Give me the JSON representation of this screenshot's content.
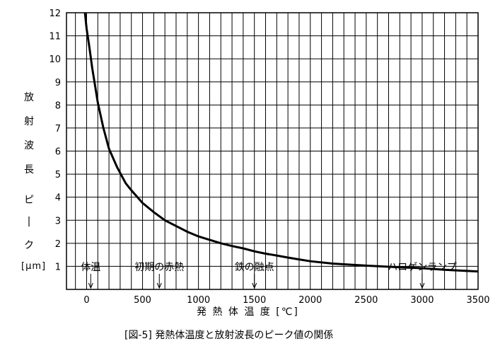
{
  "chart_data": {
    "type": "line",
    "y_label_chars": [
      "放",
      "射",
      "波",
      "長",
      "ピ",
      "|",
      "ク"
    ],
    "y_unit": "[μm]",
    "x_title": "発 熱 体 温 度 [℃]",
    "caption": "[図-5] 発熱体温度と放射波長のピーク値の関係",
    "xlim": [
      -180,
      3500
    ],
    "ylim": [
      0,
      12
    ],
    "x_ticks": [
      0,
      500,
      1000,
      1500,
      2000,
      2500,
      3000,
      3500
    ],
    "y_ticks": [
      1,
      2,
      3,
      4,
      5,
      6,
      7,
      8,
      9,
      10,
      11,
      12
    ],
    "grid": true,
    "series": [
      {
        "x": [
          -15,
          0,
          25,
          50,
          100,
          150,
          200,
          273,
          350,
          400,
          500,
          600,
          700,
          800,
          900,
          1000,
          1100,
          1200,
          1300,
          1400,
          1500,
          1600,
          1700,
          1800,
          1900,
          2000,
          2200,
          2500,
          2800,
          3000,
          3200,
          3500
        ],
        "y": [
          12.0,
          11.3,
          10.5,
          9.6,
          8.1,
          7.0,
          6.1,
          5.3,
          4.6,
          4.3,
          3.75,
          3.35,
          3.0,
          2.75,
          2.5,
          2.3,
          2.15,
          2.0,
          1.88,
          1.78,
          1.65,
          1.55,
          1.47,
          1.38,
          1.3,
          1.22,
          1.12,
          1.03,
          0.96,
          0.92,
          0.85,
          0.78
        ]
      }
    ],
    "annotations": [
      {
        "text": "体温",
        "x": 37
      },
      {
        "text": "初期の赤熱",
        "x": 650
      },
      {
        "text": "鉄の融点",
        "x": 1500
      },
      {
        "text": "ハロゲンランプ",
        "x": 3000
      }
    ]
  }
}
